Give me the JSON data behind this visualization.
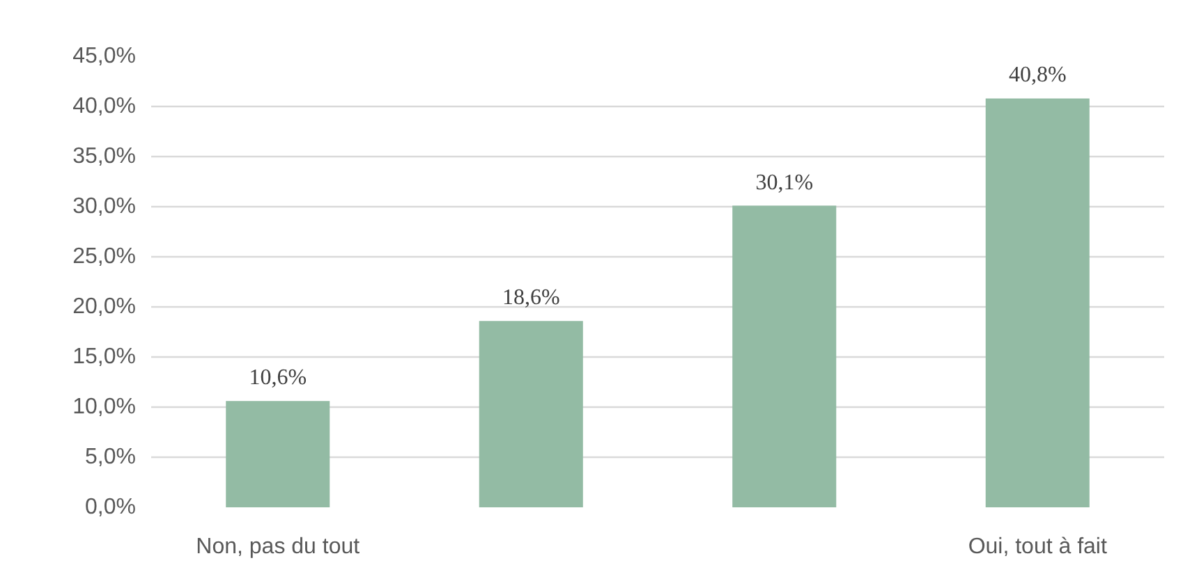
{
  "chart_data": {
    "type": "bar",
    "categories": [
      "Non, pas du tout",
      null,
      null,
      "Oui, tout à fait"
    ],
    "values": [
      10.6,
      18.6,
      30.1,
      40.8
    ],
    "color": "#93bba4",
    "value_labels": [
      "10,6%",
      "18,6%",
      "30,1%",
      "40,8%"
    ],
    "ylim": [
      0,
      45
    ],
    "yticks": [
      {
        "value": 0,
        "label": "0,0%"
      },
      {
        "value": 5,
        "label": "5,0%"
      },
      {
        "value": 10,
        "label": "10,0%"
      },
      {
        "value": 15,
        "label": "15,0%"
      },
      {
        "value": 20,
        "label": "20,0%"
      },
      {
        "value": 25,
        "label": "25,0%"
      },
      {
        "value": 30,
        "label": "30,0%"
      },
      {
        "value": 35,
        "label": "35,0%"
      },
      {
        "value": 40,
        "label": "40,0%"
      },
      {
        "value": 45,
        "label": "45,0%"
      }
    ],
    "grid": "y"
  }
}
